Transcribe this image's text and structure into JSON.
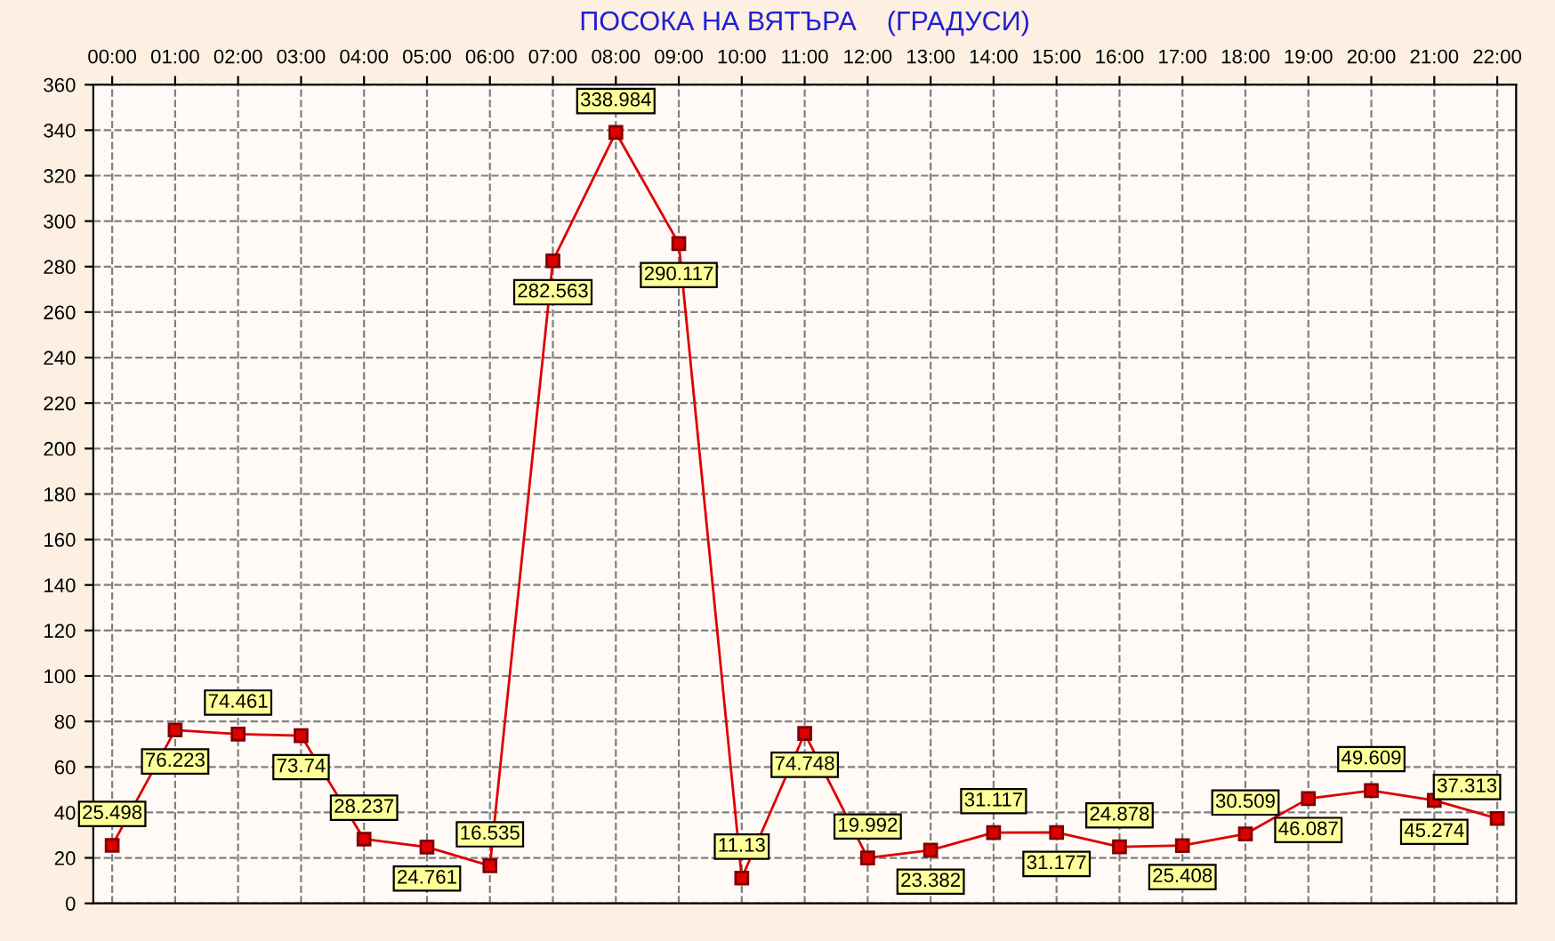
{
  "chart_data": {
    "type": "line",
    "title": "ПОСОКА НА ВЯТЪРА    (ГРАДУСИ)",
    "categories": [
      "00:00",
      "01:00",
      "02:00",
      "03:00",
      "04:00",
      "05:00",
      "06:00",
      "07:00",
      "08:00",
      "09:00",
      "10:00",
      "11:00",
      "12:00",
      "13:00",
      "14:00",
      "15:00",
      "16:00",
      "17:00",
      "18:00",
      "19:00",
      "20:00",
      "21:00",
      "22:00"
    ],
    "series": [
      {
        "color": "#dd0000",
        "values": [
          25.498,
          76.223,
          74.461,
          73.74,
          28.237,
          24.761,
          16.535,
          282.563,
          338.984,
          290.117,
          11.13,
          74.748,
          19.992,
          23.382,
          31.117,
          31.177,
          24.878,
          25.408,
          30.509,
          46.087,
          49.609,
          45.274,
          37.313
        ]
      }
    ],
    "ylim": [
      0,
      360
    ],
    "yticks": [
      0,
      20,
      40,
      60,
      80,
      100,
      120,
      140,
      160,
      180,
      200,
      220,
      240,
      260,
      280,
      300,
      320,
      340,
      360
    ],
    "grid": true,
    "marker": "square",
    "line_style": "solid",
    "data_labels": true,
    "legend": false
  }
}
